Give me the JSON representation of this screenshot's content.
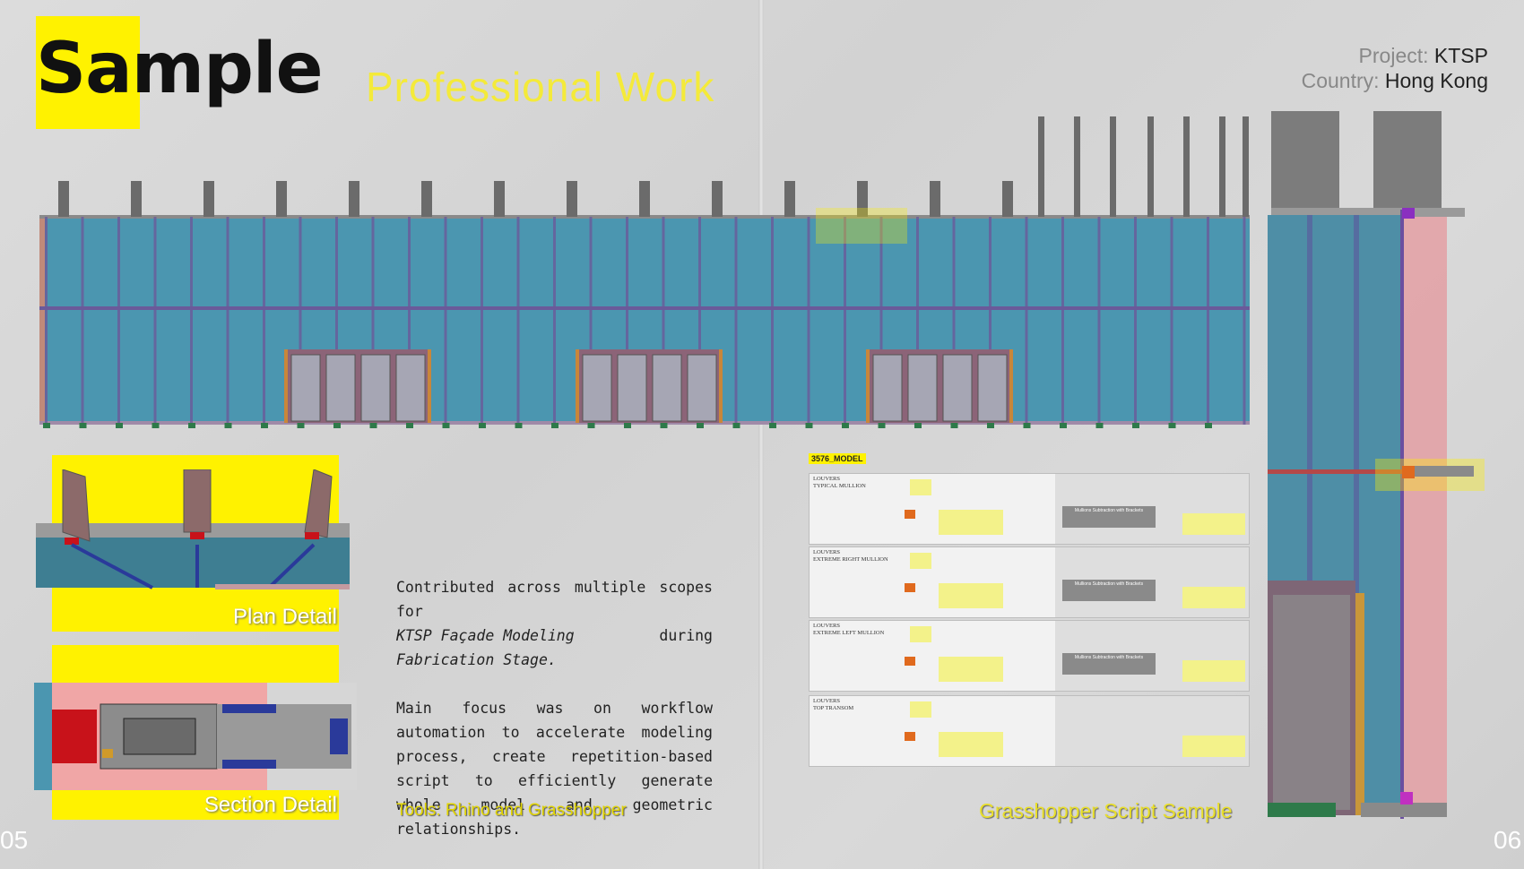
{
  "header": {
    "title": "Sample",
    "subtitle": "Professional Work"
  },
  "project_info": {
    "project_label": "Project:",
    "project_value": "KTSP",
    "country_label": "Country:",
    "country_value": "Hong Kong"
  },
  "details": {
    "plan_label": "Plan Detail",
    "section_label": "Section Detail"
  },
  "description": {
    "para1_a": "Contributed across multiple scopes for",
    "para1_b": "KTSP Façade Modeling",
    "para1_c": "during",
    "para1_d": "Fabrication Stage.",
    "para2": "Main focus was on workflow automation to accelerate modeling process, create repetition-based script to efficiently generate whole model and geometric relationships.",
    "tools": "Tools: Rhino and Grasshopper"
  },
  "grasshopper": {
    "model_tag": "3576_MODEL",
    "caption": "Grasshopper Script Sample",
    "panels": [
      {
        "name": "LOUVERS\nTYPICAL MULLION",
        "group": "Mullions Subtraction with Brackets"
      },
      {
        "name": "LOUVERS\nEXTREME RIGHT MULLION",
        "group": "Mullions Subtraction with Brackets"
      },
      {
        "name": "LOUVERS\nEXTREME LEFT MULLION",
        "group": "Mullions Subtraction with Brackets"
      },
      {
        "name": "LOUVERS\nTOP TRANSOM",
        "group": ""
      }
    ]
  },
  "page_numbers": {
    "left": "05",
    "right": "06"
  },
  "colors": {
    "accent_yellow": "#fff200",
    "glass_blue": "#4b96b0",
    "mullion_purple": "#6a5a9a",
    "door_frame": "#c9863a",
    "section_pink": "#e6a3a6"
  }
}
